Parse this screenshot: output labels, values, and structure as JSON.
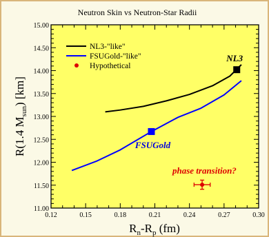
{
  "chart_data": {
    "type": "line",
    "title": "Neutron Skin vs Neutron-Star Radii",
    "xlabel": {
      "main": "R",
      "sub1": "n",
      "mid": "-R",
      "sub2": "p",
      "unit": " (fm)"
    },
    "ylabel": {
      "pre": "R(1.4 M",
      "sub": "sun",
      "post": ") [km]"
    },
    "xlim": [
      0.12,
      0.3
    ],
    "ylim": [
      11.0,
      15.0
    ],
    "xticks": [
      0.12,
      0.15,
      0.18,
      0.21,
      0.24,
      0.27,
      0.3
    ],
    "xtick_labels": [
      "0.12",
      "0.15",
      "0.18",
      "0.21",
      "0.24",
      "0.27",
      "0.30"
    ],
    "yticks": [
      11.0,
      11.5,
      12.0,
      12.5,
      13.0,
      13.5,
      14.0,
      14.5,
      15.0
    ],
    "ytick_labels": [
      "11.00",
      "11.50",
      "12.00",
      "12.50",
      "13.00",
      "13.50",
      "14.00",
      "14.50",
      "15.00"
    ],
    "background_color": "#ffff66",
    "series": [
      {
        "name": "NL3-\"like\"",
        "color": "#000000",
        "x": [
          0.167,
          0.18,
          0.2,
          0.22,
          0.24,
          0.26,
          0.275,
          0.285
        ],
        "y": [
          13.1,
          13.14,
          13.22,
          13.34,
          13.48,
          13.67,
          13.88,
          14.13
        ]
      },
      {
        "name": "FSUGold-\"like\"",
        "color": "#0000ff",
        "x": [
          0.138,
          0.16,
          0.18,
          0.207,
          0.23,
          0.25,
          0.27,
          0.285
        ],
        "y": [
          11.82,
          12.03,
          12.27,
          12.67,
          12.98,
          13.18,
          13.47,
          13.78
        ]
      }
    ],
    "markers": [
      {
        "label": "NL3",
        "x": 0.281,
        "y": 14.02,
        "color": "#000000",
        "label_color": "#000000"
      },
      {
        "label": "FSUGold",
        "x": 0.207,
        "y": 12.67,
        "color": "#0000ff",
        "label_color": "#0000dd"
      }
    ],
    "hypothetical": {
      "name": "Hypothetical",
      "x": 0.251,
      "y": 11.51,
      "xerr": 0.007,
      "yerr": 0.1,
      "color": "#dd0000",
      "annotation": "phase transition?"
    },
    "legend_position": "top-left"
  }
}
